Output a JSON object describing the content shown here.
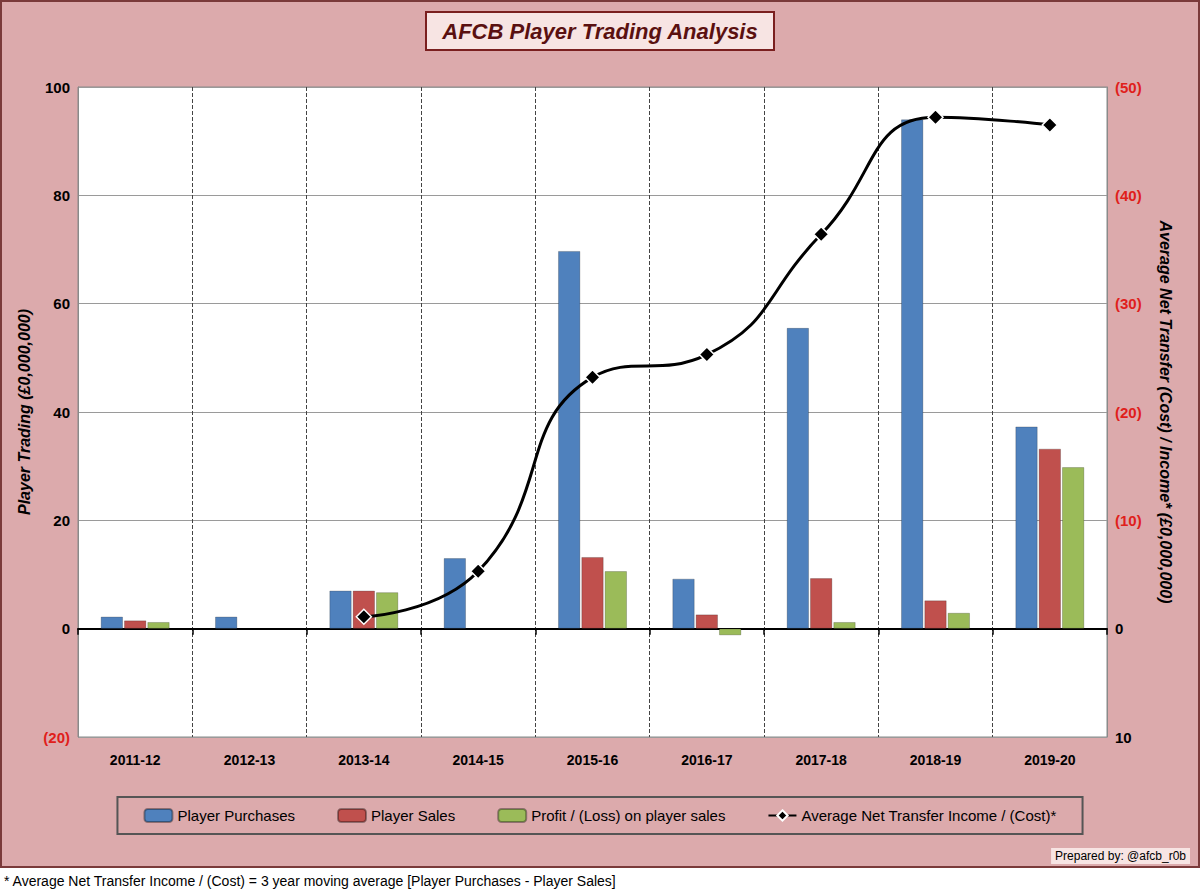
{
  "chart_data": {
    "type": "bar",
    "title": "AFCB Player Trading Analysis",
    "categories": [
      "2011-12",
      "2012-13",
      "2013-14",
      "2014-15",
      "2015-16",
      "2016-17",
      "2017-18",
      "2018-19",
      "2019-20"
    ],
    "series": [
      {
        "name": "Player Purchases",
        "color": "#4f81bd",
        "values": [
          2.2,
          2.2,
          7.0,
          13.0,
          69.7,
          9.2,
          55.5,
          94.0,
          37.3
        ]
      },
      {
        "name": "Player Sales",
        "color": "#c0504d",
        "values": [
          1.5,
          null,
          7.0,
          null,
          13.2,
          2.6,
          9.3,
          5.2,
          33.2
        ]
      },
      {
        "name": "Profit / (Loss) on player sales",
        "color": "#9bbb59",
        "values": [
          1.2,
          null,
          6.7,
          null,
          10.6,
          -1.2,
          1.2,
          2.9,
          29.8
        ]
      },
      {
        "name": "Average Net Transfer Income / (Cost)*",
        "type": "line",
        "axis": "y2",
        "color": "#000000",
        "marker": "diamond",
        "line_style": "solid",
        "values": [
          null,
          null,
          -1.1,
          -5.3,
          -23.2,
          -25.3,
          -36.4,
          -47.2,
          -46.5
        ]
      }
    ],
    "ylabel": "Player Trading (£0,000,000)",
    "y2label": "Average Net Transfer (Cost) / Income* (£0,000,000)",
    "ylim": [
      -20,
      100
    ],
    "yticks": [
      {
        "value": -20,
        "label": "(20)"
      },
      0,
      20,
      40,
      60,
      80,
      100
    ],
    "y2lim": [
      10,
      -50
    ],
    "y2ticks": [
      10,
      0,
      {
        "value": -10,
        "label": "(10)"
      },
      {
        "value": -20,
        "label": "(20)"
      },
      {
        "value": -30,
        "label": "(30)"
      },
      {
        "value": -40,
        "label": "(40)"
      },
      {
        "value": -50,
        "label": "(50)"
      }
    ],
    "grid": true,
    "legend": "bottom",
    "credit": "Prepared by: @afcb_r0b",
    "footnote": "* Average Net Transfer Income / (Cost) = 3 year moving average [Player Purchases - Player Sales]"
  }
}
